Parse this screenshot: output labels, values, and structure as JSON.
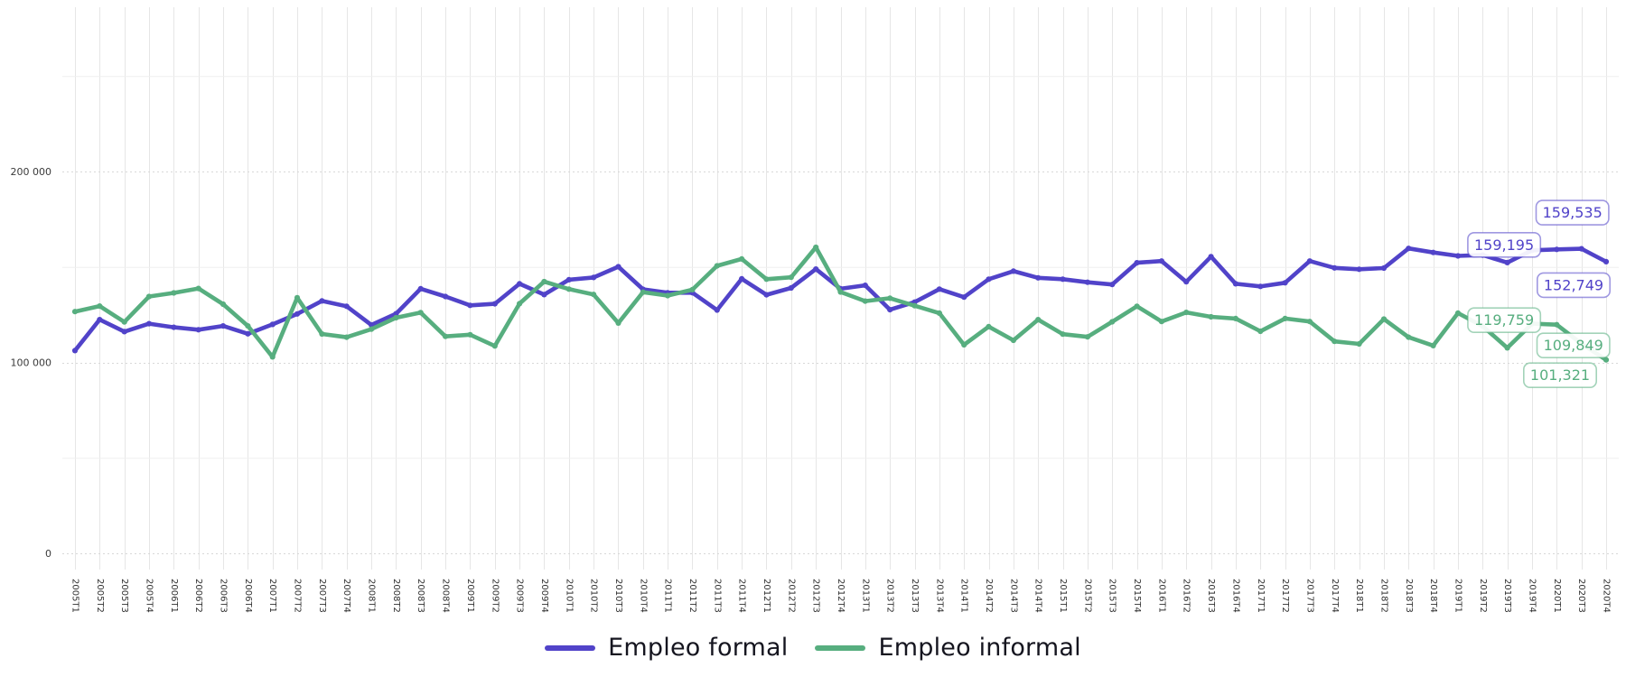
{
  "chart_data": {
    "type": "line",
    "title": "",
    "xlabel": "",
    "ylabel": "",
    "grid": true,
    "legend_position": "bottom",
    "categories": [
      "2005T1",
      "2005T2",
      "2005T3",
      "2005T4",
      "2006T1",
      "2006T2",
      "2006T3",
      "2006T4",
      "2007T1",
      "2007T2",
      "2007T3",
      "2007T4",
      "2008T1",
      "2008T2",
      "2008T3",
      "2008T4",
      "2009T1",
      "2009T2",
      "2009T3",
      "2009T4",
      "2010T1",
      "2010T2",
      "2010T3",
      "2010T4",
      "2011T1",
      "2011T2",
      "2011T3",
      "2011T4",
      "2012T1",
      "2012T2",
      "2012T3",
      "2012T4",
      "2013T1",
      "2013T2",
      "2013T3",
      "2013T4",
      "2014T1",
      "2014T2",
      "2014T3",
      "2014T4",
      "2015T1",
      "2015T2",
      "2015T3",
      "2015T4",
      "2016T1",
      "2016T2",
      "2016T3",
      "2016T4",
      "2017T1",
      "2017T2",
      "2017T3",
      "2017T4",
      "2018T1",
      "2018T2",
      "2018T3",
      "2018T4",
      "2019T1",
      "2019T2",
      "2019T3",
      "2019T4",
      "2020T1",
      "2020T3",
      "2020T4"
    ],
    "series": [
      {
        "name": "Empleo formal",
        "color": "#5143c9",
        "values": [
          106200,
          122400,
          116100,
          120300,
          118400,
          117100,
          119100,
          115000,
          119900,
          125400,
          132200,
          129400,
          119600,
          125500,
          138600,
          134500,
          129900,
          130700,
          141200,
          135500,
          143300,
          144500,
          150100,
          138300,
          136500,
          136500,
          127400,
          143800,
          135400,
          139000,
          148900,
          138600,
          140400,
          127600,
          131600,
          138400,
          134200,
          143600,
          147800,
          144300,
          143600,
          142000,
          140800,
          152200,
          153100,
          142200,
          155400,
          141200,
          139800,
          141700,
          153100,
          149500,
          148800,
          149400,
          159700,
          157600,
          155800,
          156200,
          152300,
          158700,
          159195,
          159535,
          152749
        ]
      },
      {
        "name": "Empleo informal",
        "color": "#57ae7f",
        "values": [
          126600,
          129500,
          121200,
          134500,
          136400,
          138700,
          130500,
          119100,
          102900,
          133900,
          114900,
          113200,
          117400,
          123400,
          126100,
          113600,
          114500,
          108600,
          130800,
          142300,
          138400,
          135600,
          120600,
          136800,
          135000,
          138100,
          150600,
          154200,
          143600,
          144600,
          160300,
          136900,
          132100,
          133600,
          129700,
          125800,
          109200,
          118700,
          111600,
          122400,
          114800,
          113400,
          121300,
          129400,
          121400,
          126200,
          123900,
          123000,
          116300,
          123000,
          121400,
          111000,
          109700,
          122700,
          113200,
          108800,
          125800,
          119000,
          107600,
          120300,
          119759,
          109849,
          101321
        ]
      }
    ],
    "y_axis": {
      "min": 0,
      "max": 286000,
      "ticks": [
        {
          "value": 0,
          "label": "0"
        },
        {
          "value": 100000,
          "label": "100 000"
        },
        {
          "value": 200000,
          "label": "200 000"
        }
      ],
      "minor_tick_values": [
        50000,
        150000,
        250000
      ]
    },
    "annotations": [
      {
        "series": "Empleo formal",
        "category": "2020T1",
        "value": 159195,
        "label": "159,195",
        "placement": "left"
      },
      {
        "series": "Empleo formal",
        "category": "2020T3",
        "value": 159535,
        "label": "159,535",
        "placement": "above"
      },
      {
        "series": "Empleo formal",
        "category": "2020T4",
        "value": 152749,
        "label": "152,749",
        "placement": "below"
      },
      {
        "series": "Empleo informal",
        "category": "2020T1",
        "value": 119759,
        "label": "119,759",
        "placement": "left"
      },
      {
        "series": "Empleo informal",
        "category": "2020T3",
        "value": 109849,
        "label": "109,849",
        "placement": "on"
      },
      {
        "series": "Empleo informal",
        "category": "2020T4",
        "value": 101321,
        "label": "101,321",
        "placement": "below-left"
      }
    ],
    "legend": {
      "items": [
        {
          "label": "Empleo formal"
        },
        {
          "label": "Empleo informal"
        }
      ]
    }
  }
}
